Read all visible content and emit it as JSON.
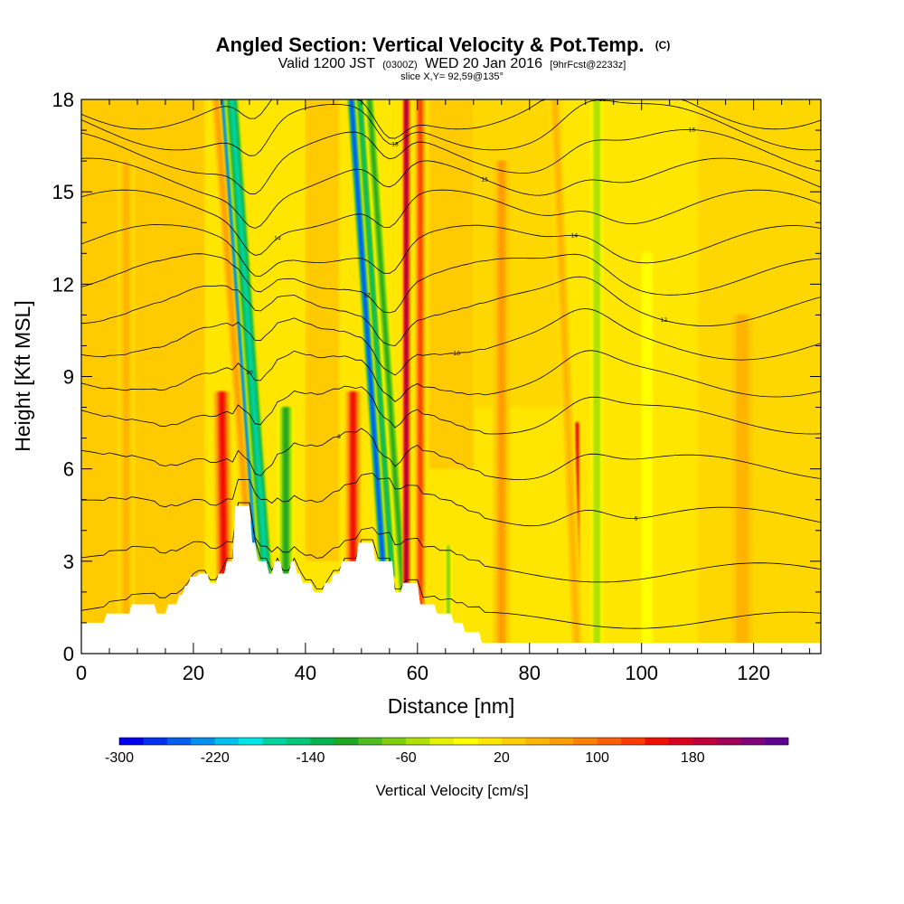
{
  "chart_data": {
    "type": "heatmap",
    "title": "Angled Section: Vertical Velocity & Pot.Temp.",
    "title_unit": "(C)",
    "subtitle_prefix": "Valid 1200 JST",
    "subtitle_utc": "(0300Z)",
    "subtitle_date": "WED 20 Jan 2016",
    "subtitle_forecast": "[9hrFcst@2233z]",
    "slice_label": "slice X,Y= 92,59@135°",
    "xlabel": "Distance [nm]",
    "ylabel": "Height [Kft MSL]",
    "xlim": [
      0,
      132
    ],
    "ylim": [
      0,
      18
    ],
    "x_ticks": [
      0,
      20,
      40,
      60,
      80,
      100,
      120
    ],
    "y_ticks": [
      0,
      3,
      6,
      9,
      12,
      15,
      18
    ],
    "colorbar": {
      "title": "Vertical Velocity [cm/s]",
      "min": -300,
      "step": 20,
      "labels": [
        -300,
        -220,
        -140,
        -60,
        20,
        100,
        180
      ],
      "colors": [
        "#0000f0",
        "#0030f0",
        "#0060f0",
        "#0090f0",
        "#00c0f0",
        "#00e6e6",
        "#00d2a0",
        "#00c878",
        "#00b450",
        "#20a820",
        "#50bc20",
        "#80d010",
        "#b0e000",
        "#e6f000",
        "#ffff00",
        "#ffe600",
        "#ffcc00",
        "#ffb400",
        "#ff9c00",
        "#ff7f00",
        "#ff6000",
        "#ff3c00",
        "#f01000",
        "#d8001e",
        "#c0003c",
        "#a0005a",
        "#800078",
        "#600090"
      ]
    },
    "background_value": 10,
    "features": [
      {
        "x": 25.5,
        "top": 8.5,
        "width": 2.8,
        "value": 140,
        "lean": 0.03
      },
      {
        "x": 31.0,
        "top": 18,
        "width": 1.3,
        "value": -260,
        "lean": 0.18
      },
      {
        "x": 33.0,
        "top": 18,
        "width": 2.5,
        "value": -180,
        "lean": 0.18
      },
      {
        "x": 36.5,
        "top": 8.0,
        "width": 2.8,
        "value": -110,
        "lean": 0.0
      },
      {
        "x": 29.5,
        "top": 18,
        "width": 1.6,
        "value": 60,
        "lean": 0.18
      },
      {
        "x": 48.5,
        "top": 8.5,
        "width": 2.6,
        "value": 140,
        "lean": 0.0
      },
      {
        "x": 54.0,
        "top": 18,
        "width": 1.3,
        "value": -280,
        "lean": 0.17
      },
      {
        "x": 55.5,
        "top": 18,
        "width": 1.3,
        "value": -160,
        "lean": 0.17
      },
      {
        "x": 57.5,
        "top": 18,
        "width": 1.8,
        "value": -110,
        "lean": 0.17
      },
      {
        "x": 58.0,
        "top": 18,
        "width": 1.4,
        "value": 200,
        "lean": 0.0
      },
      {
        "x": 60.5,
        "top": 18,
        "width": 1.8,
        "value": 120,
        "lean": 0.0
      },
      {
        "x": 65.5,
        "top": 3.5,
        "width": 1.2,
        "value": -70,
        "lean": 0.0
      },
      {
        "x": 88.5,
        "top": 7.5,
        "width": 1.0,
        "value": 160,
        "lean": 0.0
      },
      {
        "x": 88.5,
        "top": 18,
        "width": 2.2,
        "value": 40,
        "lean": 0.1
      },
      {
        "x": 92.0,
        "top": 18,
        "width": 2.0,
        "value": -60,
        "lean": 0.0
      },
      {
        "x": 101.0,
        "top": 13,
        "width": 2.5,
        "value": -20,
        "lean": 0.0
      },
      {
        "x": 75.0,
        "top": 16,
        "width": 3.0,
        "value": 60,
        "lean": 0.0
      },
      {
        "x": 118.0,
        "top": 11,
        "width": 4.0,
        "value": 50,
        "lean": 0.0
      },
      {
        "x": 8.0,
        "top": 16,
        "width": 3.0,
        "value": 40,
        "lean": 0.0
      }
    ],
    "terrain": [
      [
        0,
        1.0
      ],
      [
        4,
        1.0
      ],
      [
        4.5,
        1.3
      ],
      [
        8.5,
        1.3
      ],
      [
        9,
        1.6
      ],
      [
        13,
        1.6
      ],
      [
        13.5,
        1.3
      ],
      [
        15,
        1.3
      ],
      [
        15.5,
        1.6
      ],
      [
        17,
        1.6
      ],
      [
        17.5,
        1.9
      ],
      [
        18,
        1.9
      ],
      [
        18.5,
        2.2
      ],
      [
        19,
        2.2
      ],
      [
        19.5,
        2.5
      ],
      [
        20.5,
        2.5
      ],
      [
        21,
        2.6
      ],
      [
        22.5,
        2.6
      ],
      [
        23,
        2.3
      ],
      [
        24,
        2.3
      ],
      [
        24.5,
        2.6
      ],
      [
        25.5,
        2.6
      ],
      [
        26,
        3.0
      ],
      [
        27,
        3.0
      ],
      [
        27.5,
        4.8
      ],
      [
        30,
        4.8
      ],
      [
        30.5,
        3.6
      ],
      [
        31,
        3.6
      ],
      [
        31.5,
        3.0
      ],
      [
        33,
        3.0
      ],
      [
        33.5,
        2.6
      ],
      [
        34,
        2.6
      ],
      [
        34.5,
        3.0
      ],
      [
        35.5,
        3.0
      ],
      [
        36,
        2.6
      ],
      [
        37,
        2.6
      ],
      [
        37.5,
        3.0
      ],
      [
        38,
        3.0
      ],
      [
        38.5,
        2.6
      ],
      [
        39,
        2.6
      ],
      [
        39.5,
        2.3
      ],
      [
        41,
        2.3
      ],
      [
        41.5,
        2.0
      ],
      [
        43,
        2.0
      ],
      [
        43.5,
        2.3
      ],
      [
        44.5,
        2.3
      ],
      [
        45,
        2.6
      ],
      [
        46,
        2.6
      ],
      [
        46.5,
        3.0
      ],
      [
        49,
        3.0
      ],
      [
        49.5,
        3.6
      ],
      [
        52,
        3.6
      ],
      [
        52.5,
        3.0
      ],
      [
        55.5,
        3.0
      ],
      [
        56,
        2.0
      ],
      [
        57,
        2.0
      ],
      [
        57.5,
        2.3
      ],
      [
        60,
        2.3
      ],
      [
        60.5,
        1.6
      ],
      [
        63,
        1.6
      ],
      [
        63.5,
        1.3
      ],
      [
        66,
        1.3
      ],
      [
        66.5,
        1.0
      ],
      [
        68,
        1.0
      ],
      [
        68.5,
        0.7
      ],
      [
        71,
        0.7
      ],
      [
        71.5,
        0.35
      ],
      [
        132,
        0.35
      ]
    ],
    "theta_contours": [
      {
        "base": 1.5,
        "label": ""
      },
      {
        "base": 3.0,
        "label": ""
      },
      {
        "base": 4.7,
        "label": "6"
      },
      {
        "base": 6.3,
        "label": "8"
      },
      {
        "base": 7.8,
        "label": ""
      },
      {
        "base": 9.0,
        "label": "10"
      },
      {
        "base": 10.2,
        "label": "10"
      },
      {
        "base": 11.3,
        "label": "12"
      },
      {
        "base": 12.3,
        "label": "12"
      },
      {
        "base": 13.3,
        "label": "14"
      },
      {
        "base": 14.4,
        "label": "14"
      },
      {
        "base": 15.4,
        "label": "15"
      },
      {
        "base": 16.3,
        "label": "16"
      },
      {
        "base": 17.1,
        "label": "18"
      },
      {
        "base": 17.8,
        "label": "18"
      }
    ]
  }
}
